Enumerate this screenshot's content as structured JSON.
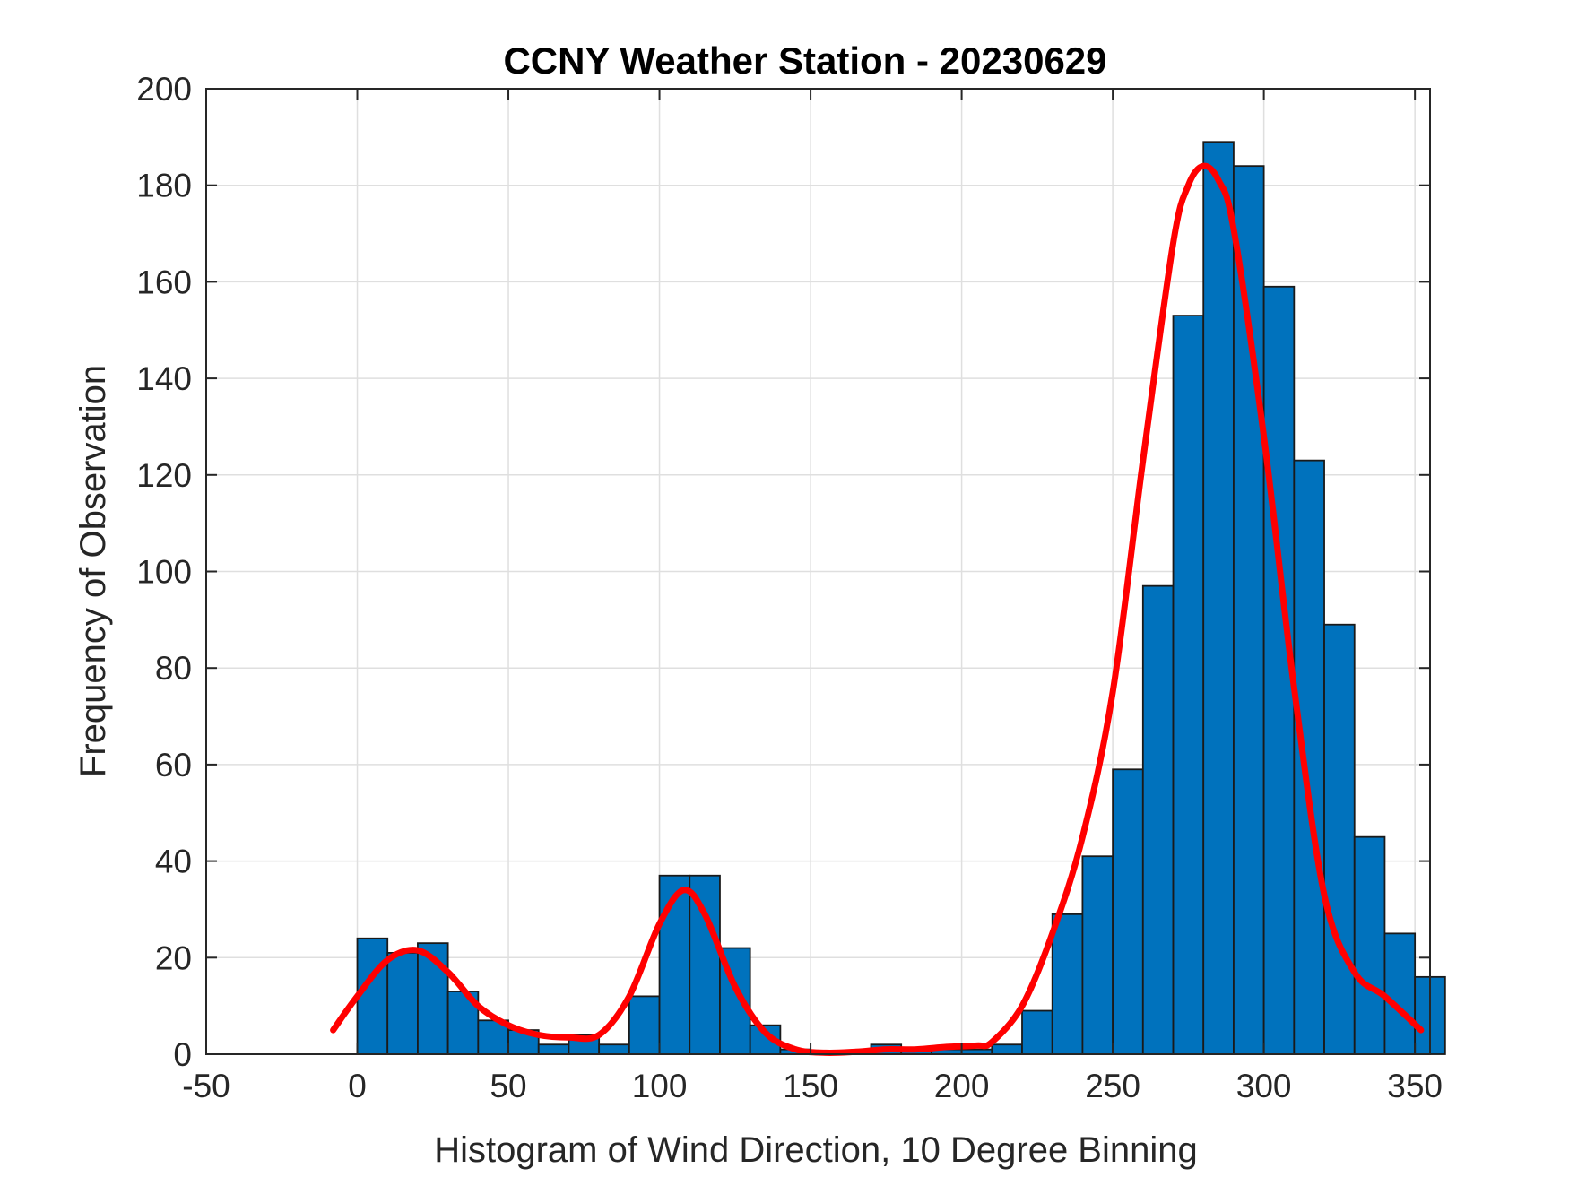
{
  "chart_data": {
    "type": "bar",
    "title": "CCNY Weather Station - 20230629",
    "xlabel": "Histogram of Wind Direction, 10 Degree Binning",
    "ylabel": "Frequency of Observation",
    "xlim": [
      -50,
      355
    ],
    "ylim": [
      0,
      200
    ],
    "xticks": [
      -50,
      0,
      50,
      100,
      150,
      200,
      250,
      300,
      350
    ],
    "yticks": [
      0,
      20,
      40,
      60,
      80,
      100,
      120,
      140,
      160,
      180,
      200
    ],
    "grid": true,
    "bin_width": 10,
    "bin_edges_start": 0,
    "values": [
      24,
      21,
      23,
      13,
      7,
      5,
      2,
      4,
      2,
      12,
      37,
      37,
      22,
      6,
      1,
      0,
      0,
      2,
      1,
      1,
      1,
      2,
      9,
      29,
      41,
      59,
      97,
      153,
      189,
      184,
      159,
      123,
      89,
      45,
      25,
      16
    ],
    "fit_curve": {
      "x": [
        -8,
        0,
        10,
        20,
        30,
        40,
        50,
        60,
        70,
        80,
        90,
        100,
        108,
        115,
        125,
        135,
        145,
        155,
        165,
        175,
        185,
        195,
        205,
        210,
        220,
        230,
        240,
        250,
        260,
        270,
        275,
        280,
        285,
        290,
        300,
        310,
        320,
        330,
        340,
        352
      ],
      "y": [
        5,
        12,
        19.5,
        21.5,
        17,
        10,
        6,
        4,
        3.5,
        4,
        12,
        27,
        34,
        29,
        14,
        4.5,
        1,
        0.3,
        0.5,
        1,
        1,
        1.5,
        1.8,
        2.5,
        10,
        25,
        45,
        75,
        123,
        168,
        180,
        184,
        181,
        171,
        128,
        76,
        33,
        17,
        12,
        5
      ]
    },
    "colors": {
      "bar_fill": "#0072bd",
      "fit_line": "#ff0000"
    }
  }
}
